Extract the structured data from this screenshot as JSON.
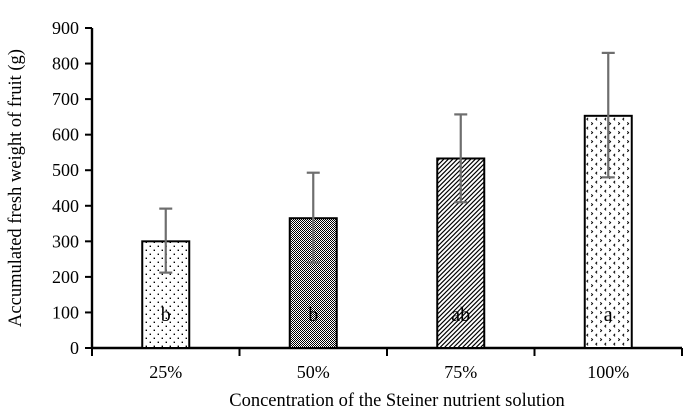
{
  "chart_data": {
    "type": "bar",
    "title": "",
    "xlabel": "Concentration of the Steiner nutrient solution",
    "ylabel": "Accumulated fresh weight of fruit (g)",
    "categories": [
      "25%",
      "50%",
      "75%",
      "100%"
    ],
    "values": [
      300,
      365,
      533,
      653
    ],
    "error_upper": [
      392,
      493,
      657,
      830
    ],
    "error_lower": [
      212,
      240,
      410,
      480
    ],
    "significance_letters": [
      "b",
      "b",
      "ab",
      "a"
    ],
    "bar_patterns": [
      "fine-dots",
      "checkerboard",
      "diagonal-hatch",
      "chevron-dots"
    ],
    "ylim": [
      0,
      900
    ],
    "ytick_step": 100,
    "grid": false,
    "legend": null,
    "colors": {
      "background": "#ffffff",
      "bar_fill_base": "#ffffff",
      "bar_outline": "#000000",
      "pattern_ink": "#000000",
      "error_bar": "#6e6e6e",
      "axis": "#000000",
      "text": "#000000"
    }
  }
}
